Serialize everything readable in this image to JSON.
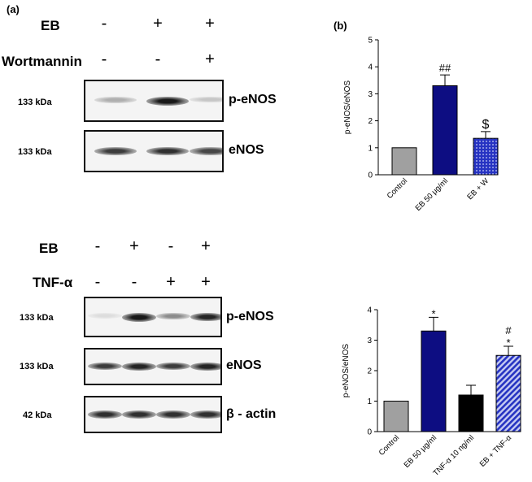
{
  "figure": {
    "panel_a_letter": "(a)",
    "panel_b_letter": "(b)",
    "top_blot": {
      "treatments": [
        {
          "label": "EB",
          "signs": [
            "-",
            "+",
            "+"
          ]
        },
        {
          "label": "Wortmannin",
          "signs": [
            "-",
            "-",
            "+"
          ]
        }
      ],
      "rows": [
        {
          "kda": "133 kDa",
          "protein": "p-eNOS",
          "band_intensity": [
            0.35,
            1.0,
            0.25
          ]
        },
        {
          "kda": "133 kDa",
          "protein": "eNOS",
          "band_intensity": [
            0.85,
            0.9,
            0.8
          ]
        }
      ]
    },
    "bottom_blot": {
      "treatments": [
        {
          "label": "EB",
          "signs": [
            "-",
            "+",
            "-",
            "+"
          ]
        },
        {
          "label": "TNF-α",
          "signs": [
            "-",
            "-",
            "+",
            "+"
          ]
        }
      ],
      "rows": [
        {
          "kda": "133 kDa",
          "protein": "p-eNOS",
          "band_intensity": [
            0.15,
            1.0,
            0.5,
            0.95
          ]
        },
        {
          "kda": "133 kDa",
          "protein": "eNOS",
          "band_intensity": [
            0.85,
            0.95,
            0.85,
            0.95
          ]
        },
        {
          "kda": "42 kDa",
          "protein": "β - actin",
          "band_intensity": [
            0.9,
            0.9,
            0.9,
            0.9
          ]
        }
      ]
    }
  },
  "chart_data": [
    {
      "type": "bar",
      "ylabel": "p-eNOS/eNOS",
      "categories": [
        "Control",
        "EB 50 μg/ml",
        "EB + W"
      ],
      "values": [
        1.0,
        3.3,
        1.35
      ],
      "errors": [
        0,
        0.4,
        0.25
      ],
      "annotations": [
        "",
        "##",
        "$"
      ],
      "ylim": [
        0,
        5
      ],
      "yticks": [
        "0",
        "1",
        "2",
        "3",
        "4",
        "5"
      ],
      "bar_colors": [
        "#a0a0a0",
        "#0d0d82",
        "#2633c2"
      ],
      "bar_patterns": [
        "solid",
        "solid",
        "dots"
      ]
    },
    {
      "type": "bar",
      "ylabel": "p-eNOS/eNOS",
      "categories": [
        "Control",
        "EB 50 μg/ml",
        "TNF-α 10 ng/ml",
        "EB + TNF-α"
      ],
      "values": [
        1.0,
        3.3,
        1.2,
        2.5
      ],
      "errors": [
        0,
        0.45,
        0.32,
        0.3
      ],
      "annotations": [
        "",
        "*",
        "",
        "#\n*"
      ],
      "ylim": [
        0,
        4
      ],
      "yticks": [
        "0",
        "1",
        "2",
        "3",
        "4"
      ],
      "bar_colors": [
        "#a0a0a0",
        "#0d0d82",
        "#000000",
        "#2633c2"
      ],
      "bar_patterns": [
        "solid",
        "solid",
        "solid",
        "stripes"
      ]
    }
  ]
}
